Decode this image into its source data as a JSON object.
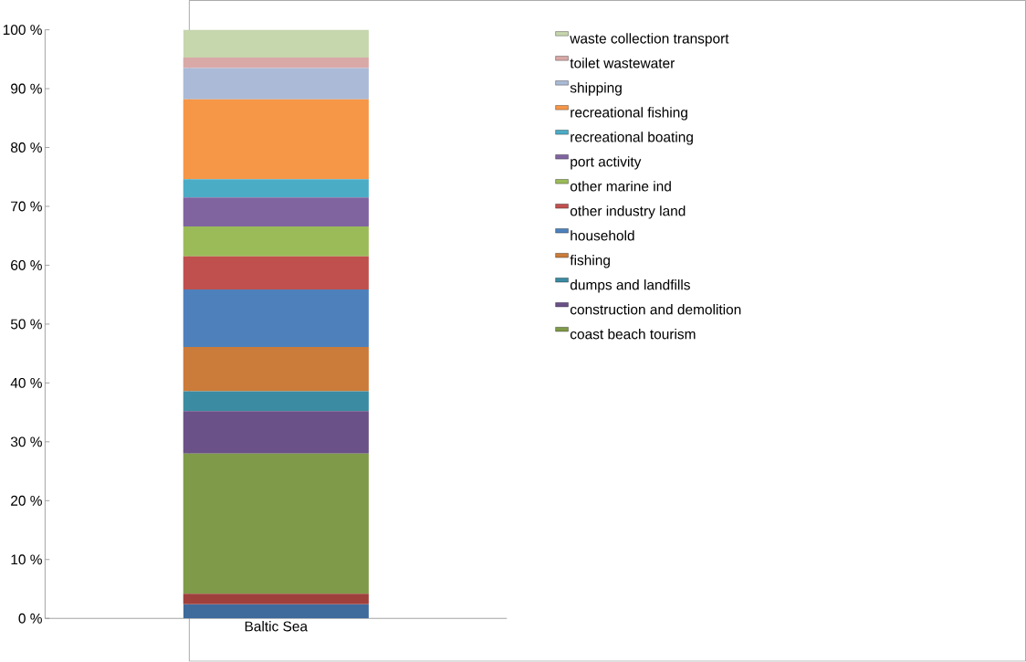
{
  "chart_data": {
    "type": "bar",
    "stacked": true,
    "categories": [
      "Baltic Sea"
    ],
    "series": [
      {
        "color": "#3f6a9c",
        "values": [
          2.4
        ]
      },
      {
        "color": "#9f403d",
        "values": [
          1.8
        ]
      },
      {
        "name": "coast beach tourism",
        "color": "#7f9a48",
        "values": [
          23.8
        ]
      },
      {
        "name": "construction and demolition",
        "color": "#6a5187",
        "values": [
          7.2
        ]
      },
      {
        "name": "dumps and landfills",
        "color": "#3b8ba2",
        "values": [
          3.4
        ]
      },
      {
        "name": "fishing",
        "color": "#cb7b3a",
        "values": [
          7.5
        ]
      },
      {
        "name": "household",
        "color": "#4e81bc",
        "values": [
          9.8
        ]
      },
      {
        "name": "other industry land",
        "color": "#c0504e",
        "values": [
          5.6
        ]
      },
      {
        "name": "other marine ind",
        "color": "#9bbb59",
        "values": [
          5.1
        ]
      },
      {
        "name": "port activity",
        "color": "#8064a0",
        "values": [
          4.9
        ]
      },
      {
        "name": "recreational boating",
        "color": "#4bacc6",
        "values": [
          3.1
        ]
      },
      {
        "name": "recreational fishing",
        "color": "#f69647",
        "values": [
          13.6
        ]
      },
      {
        "name": "shipping",
        "color": "#aabad7",
        "values": [
          5.3
        ]
      },
      {
        "name": "toilet wastewater",
        "color": "#d9a9a8",
        "values": [
          1.8
        ]
      },
      {
        "name": "waste collection transport",
        "color": "#c6d6ad",
        "values": [
          4.7
        ]
      }
    ],
    "ylim": [
      0,
      100
    ],
    "yticks": [
      {
        "value": 0,
        "label": "0 %"
      },
      {
        "value": 10,
        "label": "10 %"
      },
      {
        "value": 20,
        "label": "20 %"
      },
      {
        "value": 30,
        "label": "30 %"
      },
      {
        "value": 40,
        "label": "40 %"
      },
      {
        "value": 50,
        "label": "50 %"
      },
      {
        "value": 60,
        "label": "60 %"
      },
      {
        "value": 70,
        "label": "70 %"
      },
      {
        "value": 80,
        "label": "80 %"
      },
      {
        "value": 90,
        "label": "90 %"
      },
      {
        "value": 100,
        "label": "100 %"
      }
    ],
    "legend": "right"
  }
}
